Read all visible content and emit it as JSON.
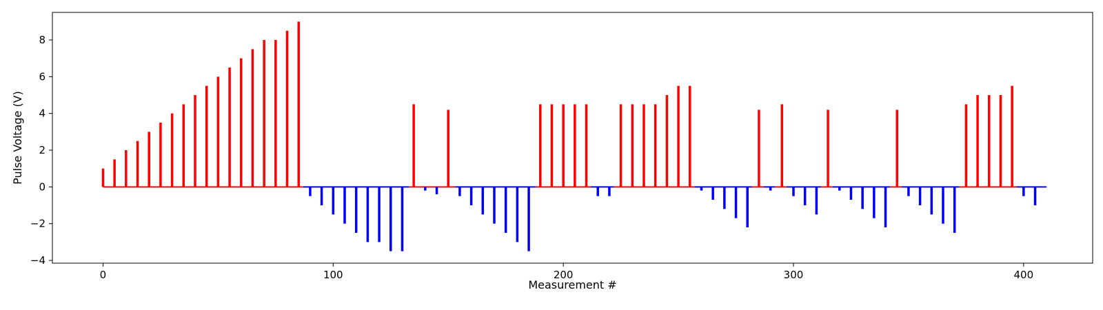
{
  "chart_data": {
    "type": "bar",
    "title": "",
    "xlabel": "Measurement #",
    "ylabel": "Pulse Voltage (V)",
    "xlim": [
      -22,
      430
    ],
    "ylim": [
      -4.15,
      9.5
    ],
    "xticks": [
      0,
      100,
      200,
      300,
      400
    ],
    "yticks": [
      -4,
      -2,
      0,
      2,
      4,
      6,
      8
    ],
    "grid": false,
    "legend": "none",
    "colors": {
      "positive": "#ff0000",
      "negative": "#0000ff",
      "frame": "#000000"
    },
    "baseline_segments": [
      {
        "from": 0,
        "to": 87,
        "color": "#ff0000"
      },
      {
        "from": 87,
        "to": 133,
        "color": "#0000ff"
      },
      {
        "from": 133,
        "to": 153,
        "color": "#ff0000"
      },
      {
        "from": 153,
        "to": 188,
        "color": "#0000ff"
      },
      {
        "from": 188,
        "to": 212,
        "color": "#ff0000"
      },
      {
        "from": 212,
        "to": 222,
        "color": "#0000ff"
      },
      {
        "from": 222,
        "to": 257,
        "color": "#ff0000"
      },
      {
        "from": 257,
        "to": 282,
        "color": "#0000ff"
      },
      {
        "from": 282,
        "to": 287,
        "color": "#ff0000"
      },
      {
        "from": 287,
        "to": 292,
        "color": "#0000ff"
      },
      {
        "from": 292,
        "to": 297,
        "color": "#ff0000"
      },
      {
        "from": 297,
        "to": 312,
        "color": "#0000ff"
      },
      {
        "from": 312,
        "to": 317,
        "color": "#ff0000"
      },
      {
        "from": 317,
        "to": 342,
        "color": "#0000ff"
      },
      {
        "from": 342,
        "to": 347,
        "color": "#ff0000"
      },
      {
        "from": 347,
        "to": 372,
        "color": "#0000ff"
      },
      {
        "from": 372,
        "to": 397,
        "color": "#ff0000"
      },
      {
        "from": 397,
        "to": 410,
        "color": "#0000ff"
      }
    ],
    "x": [
      0,
      5,
      10,
      15,
      20,
      25,
      30,
      35,
      40,
      45,
      50,
      55,
      60,
      65,
      70,
      75,
      80,
      85,
      90,
      95,
      100,
      105,
      110,
      115,
      120,
      125,
      130,
      135,
      140,
      145,
      150,
      155,
      160,
      165,
      170,
      175,
      180,
      185,
      190,
      195,
      200,
      205,
      210,
      215,
      220,
      225,
      230,
      235,
      240,
      245,
      250,
      255,
      260,
      265,
      270,
      275,
      280,
      285,
      290,
      295,
      300,
      305,
      310,
      315,
      320,
      325,
      330,
      335,
      340,
      345,
      350,
      355,
      360,
      365,
      370,
      375,
      380,
      385,
      390,
      395,
      400,
      405
    ],
    "values": [
      1.0,
      1.5,
      2.0,
      2.5,
      3.0,
      3.5,
      4.0,
      4.5,
      5.0,
      5.5,
      6.0,
      6.5,
      7.0,
      7.5,
      8.0,
      8.0,
      8.5,
      9.0,
      -0.5,
      -1.0,
      -1.5,
      -2.0,
      -2.5,
      -3.0,
      -3.0,
      -3.5,
      -3.5,
      4.5,
      -0.2,
      -0.4,
      4.2,
      -0.5,
      -1.0,
      -1.5,
      -2.0,
      -2.5,
      -3.0,
      -3.5,
      4.5,
      4.5,
      4.5,
      4.5,
      4.5,
      -0.5,
      -0.5,
      4.5,
      4.5,
      4.5,
      4.5,
      5.0,
      5.5,
      5.5,
      -0.2,
      -0.7,
      -1.2,
      -1.7,
      -2.2,
      4.2,
      -0.2,
      4.5,
      -0.5,
      -1.0,
      -1.5,
      4.2,
      -0.2,
      -0.7,
      -1.2,
      -1.7,
      -2.2,
      4.2,
      -0.5,
      -1.0,
      -1.5,
      -2.0,
      -2.5,
      4.5,
      5.0,
      5.0,
      5.0,
      5.5,
      -0.5,
      -1.0
    ]
  }
}
